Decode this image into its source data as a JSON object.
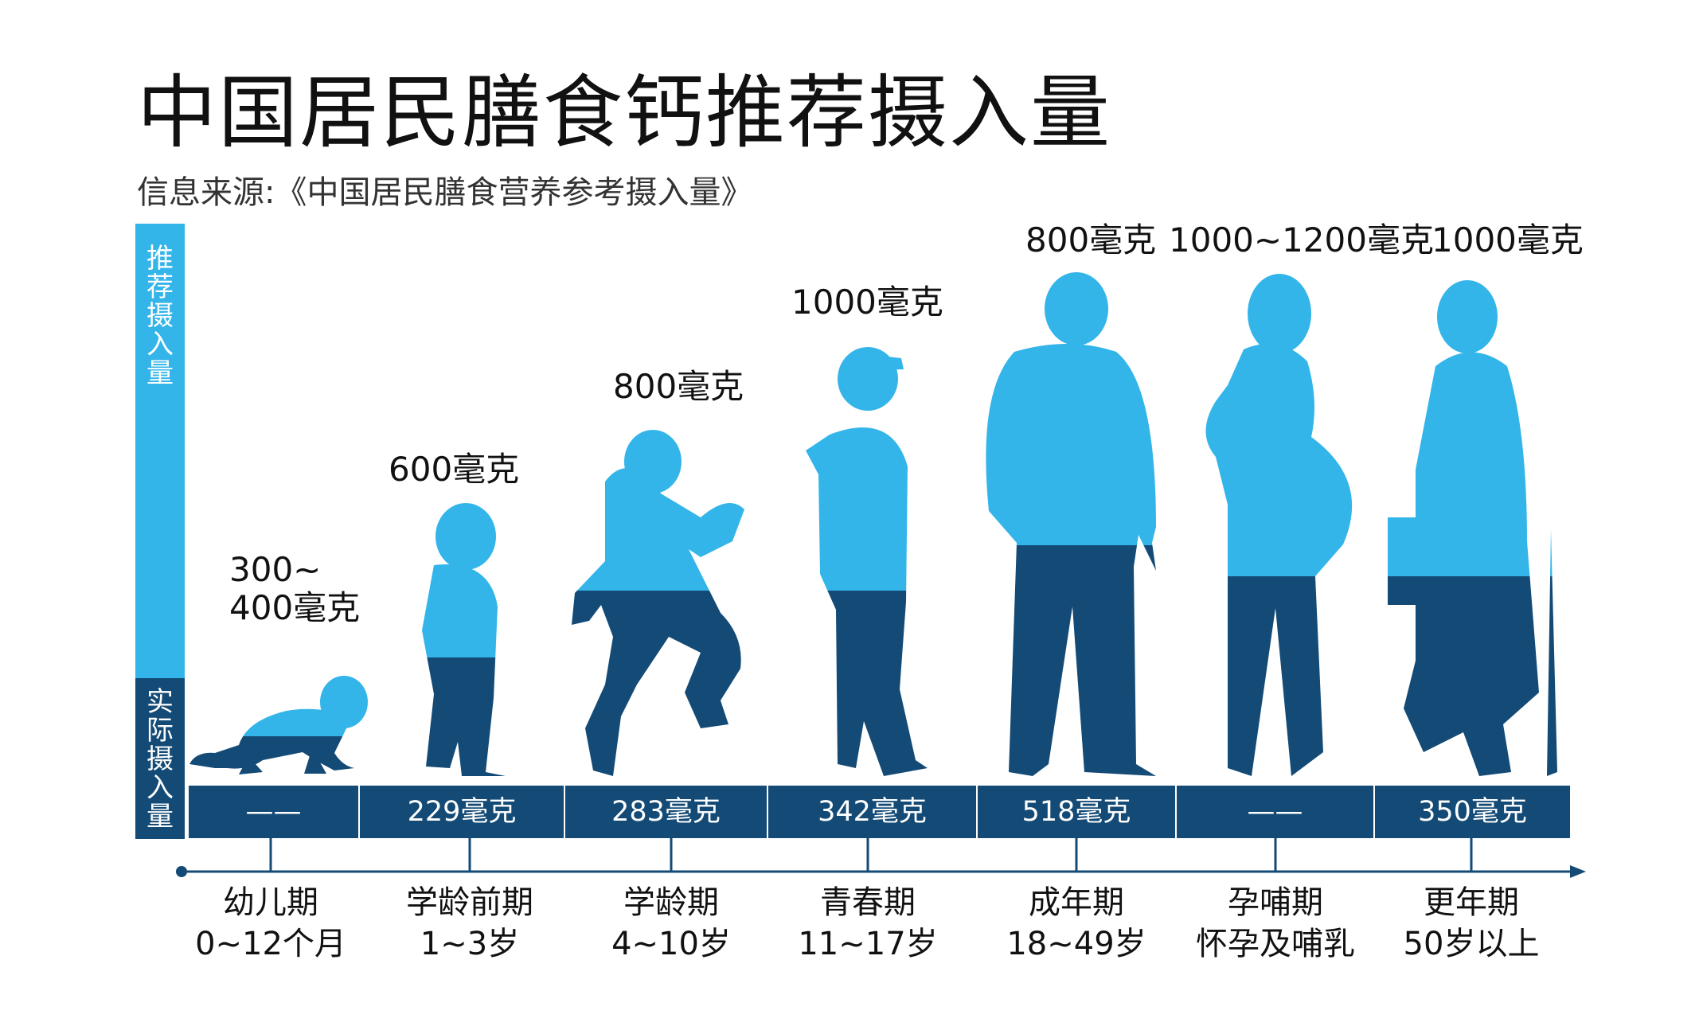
{
  "chart_data": {
    "type": "bar",
    "title": "中国居民膳食钙推荐摄入量",
    "subtitle": "信息来源:《中国居民膳食营养参考摄入量》",
    "legend_recommended": "推荐摄入量",
    "legend_actual": "实际摄入量",
    "unit": "毫克",
    "colors": {
      "recommended": "#33b5ea",
      "actual": "#134a76",
      "separator": "#ffffff"
    },
    "categories": [
      {
        "name": "幼儿期",
        "age": "0~12个月",
        "recommended_label": "300~\n400毫克",
        "recommended": [
          300,
          400
        ],
        "actual_label": "——",
        "actual": null
      },
      {
        "name": "学龄前期",
        "age": "1~3岁",
        "recommended_label": "600毫克",
        "recommended": 600,
        "actual_label": "229毫克",
        "actual": 229
      },
      {
        "name": "学龄期",
        "age": "4~10岁",
        "recommended_label": "800毫克",
        "recommended": 800,
        "actual_label": "283毫克",
        "actual": 283
      },
      {
        "name": "青春期",
        "age": "11~17岁",
        "recommended_label": "1000毫克",
        "recommended": 1000,
        "actual_label": "342毫克",
        "actual": 342
      },
      {
        "name": "成年期",
        "age": "18~49岁",
        "recommended_label": "800毫克",
        "recommended": 800,
        "actual_label": "518毫克",
        "actual": 518
      },
      {
        "name": "孕哺期",
        "age": "怀孕及哺乳",
        "recommended_label": "1000~1200毫克",
        "recommended": [
          1000,
          1200
        ],
        "actual_label": "——",
        "actual": null
      },
      {
        "name": "更年期",
        "age": "50岁以上",
        "recommended_label": "1000毫克",
        "recommended": 1000,
        "actual_label": "350毫克",
        "actual": 350
      }
    ]
  }
}
